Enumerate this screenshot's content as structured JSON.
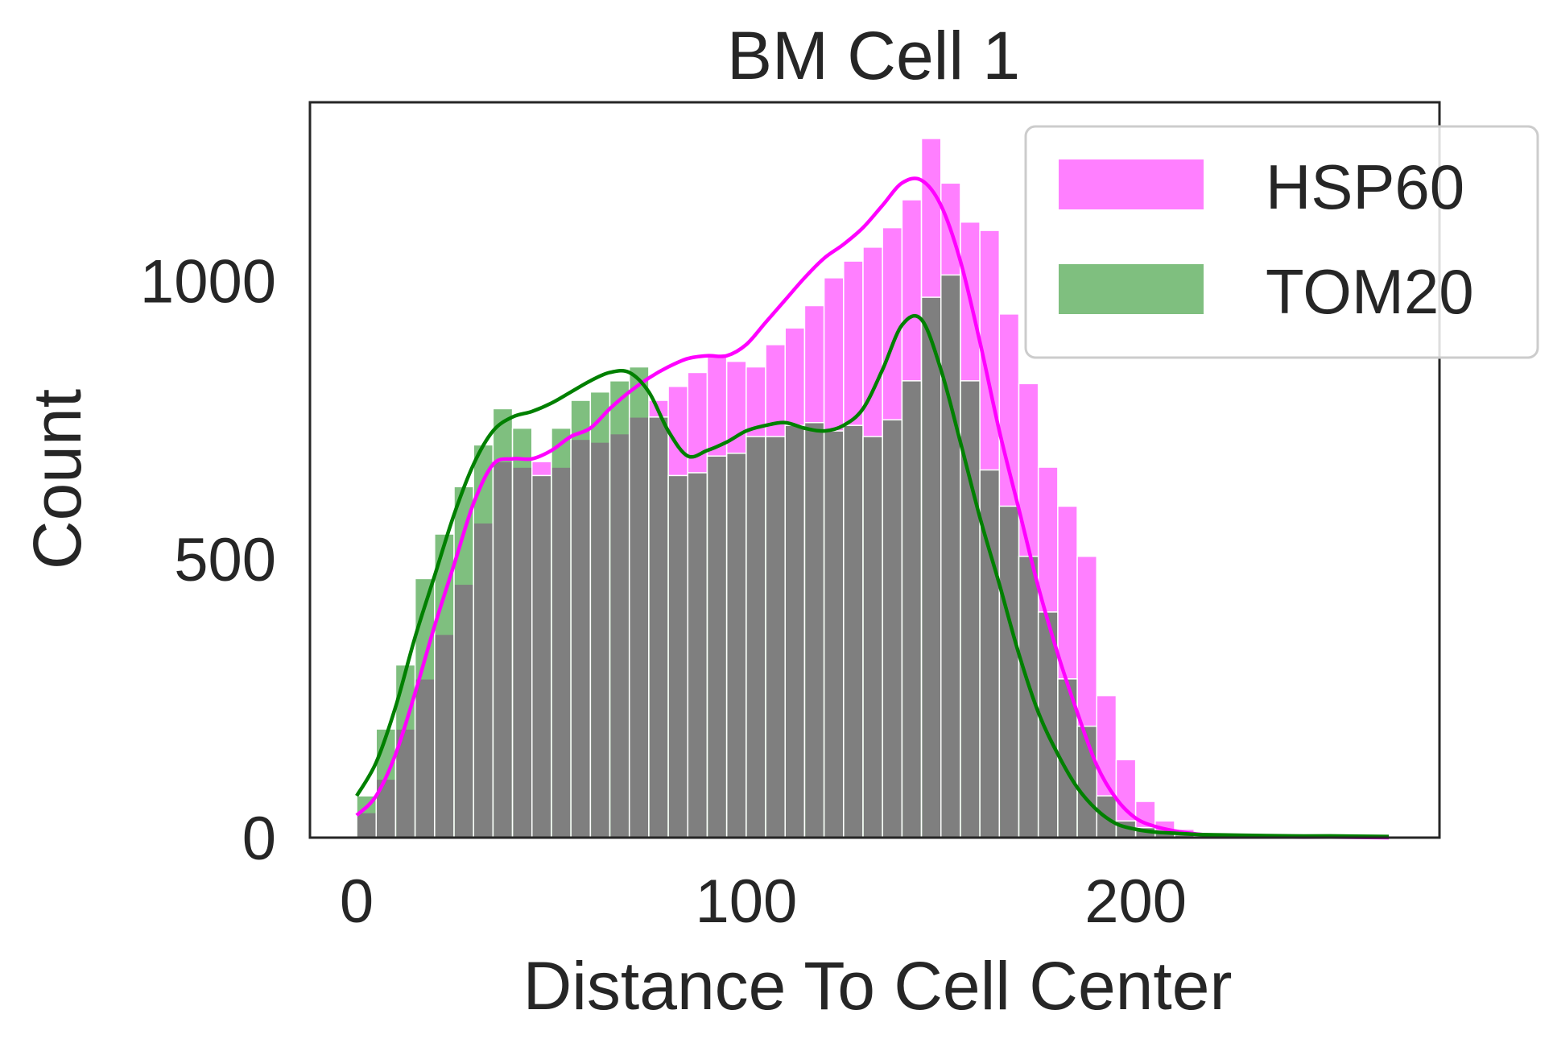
{
  "chart_data": {
    "type": "bar",
    "title": "BM Cell 1",
    "xlabel": "Distance To Cell Center",
    "ylabel": "Count",
    "xlim": [
      -12,
      278
    ],
    "ylim": [
      0,
      1320
    ],
    "xticks": [
      0,
      100,
      200
    ],
    "yticks": [
      0,
      500,
      1000
    ],
    "grid": false,
    "legend_position": "top-right",
    "bin_edges": [
      0,
      5,
      10,
      15,
      20,
      25,
      30,
      35,
      40,
      45,
      50,
      55,
      60,
      65,
      70,
      75,
      80,
      85,
      90,
      95,
      100,
      105,
      110,
      115,
      120,
      125,
      130,
      135,
      140,
      145,
      150,
      155,
      160,
      165,
      170,
      175,
      180,
      185,
      190,
      195,
      200,
      205,
      210,
      215,
      220,
      225,
      230,
      235,
      240,
      245,
      250,
      255,
      260,
      265
    ],
    "series": [
      {
        "name": "HSP60",
        "color": "#ff00ff",
        "opacity": 0.5,
        "counts": [
          45,
          105,
          195,
          285,
          365,
          455,
          565,
          675,
          665,
          675,
          665,
          715,
          710,
          725,
          755,
          785,
          810,
          835,
          865,
          855,
          845,
          885,
          915,
          955,
          1005,
          1035,
          1060,
          1095,
          1145,
          1255,
          1175,
          1105,
          1090,
          940,
          815,
          665,
          595,
          505,
          255,
          140,
          65,
          30,
          15,
          8,
          5,
          3,
          2,
          2,
          1,
          1,
          1,
          1,
          0
        ],
        "kde_x": [
          0,
          5,
          10,
          15,
          20,
          25,
          30,
          35,
          40,
          45,
          50,
          55,
          60,
          65,
          70,
          75,
          80,
          85,
          90,
          95,
          100,
          105,
          110,
          115,
          120,
          125,
          130,
          135,
          140,
          145,
          150,
          155,
          160,
          165,
          170,
          175,
          180,
          185,
          190,
          195,
          200,
          205,
          210,
          215,
          220,
          230,
          240,
          250,
          265
        ],
        "kde_y": [
          40,
          75,
          150,
          260,
          380,
          490,
          600,
          670,
          680,
          680,
          695,
          720,
          735,
          770,
          800,
          825,
          845,
          860,
          865,
          865,
          885,
          925,
          965,
          1005,
          1040,
          1065,
          1095,
          1135,
          1175,
          1180,
          1135,
          1035,
          890,
          730,
          590,
          450,
          330,
          225,
          130,
          70,
          35,
          20,
          12,
          7,
          4,
          2,
          1,
          1,
          0
        ]
      },
      {
        "name": "TOM20",
        "color": "#008000",
        "opacity": 0.5,
        "counts": [
          75,
          195,
          310,
          465,
          545,
          630,
          705,
          770,
          735,
          650,
          735,
          785,
          800,
          820,
          845,
          755,
          650,
          655,
          685,
          690,
          720,
          720,
          740,
          745,
          730,
          740,
          720,
          750,
          820,
          970,
          1010,
          820,
          660,
          595,
          505,
          405,
          285,
          200,
          75,
          30,
          18,
          8,
          5,
          3,
          2,
          2,
          1,
          1,
          1,
          1,
          1,
          1,
          0
        ],
        "kde_x": [
          0,
          5,
          10,
          15,
          20,
          25,
          30,
          35,
          40,
          45,
          50,
          55,
          60,
          65,
          70,
          75,
          80,
          85,
          90,
          95,
          100,
          105,
          110,
          115,
          120,
          125,
          130,
          135,
          140,
          145,
          150,
          155,
          160,
          165,
          170,
          175,
          180,
          185,
          190,
          195,
          200,
          205,
          210,
          215,
          220,
          230,
          240,
          250,
          265
        ],
        "kde_y": [
          75,
          135,
          235,
          360,
          470,
          580,
          670,
          730,
          755,
          765,
          780,
          800,
          820,
          835,
          835,
          800,
          730,
          685,
          695,
          710,
          730,
          740,
          745,
          735,
          730,
          740,
          770,
          840,
          920,
          930,
          840,
          710,
          575,
          455,
          330,
          225,
          150,
          90,
          50,
          25,
          15,
          10,
          8,
          6,
          5,
          4,
          3,
          3,
          2
        ]
      }
    ]
  }
}
